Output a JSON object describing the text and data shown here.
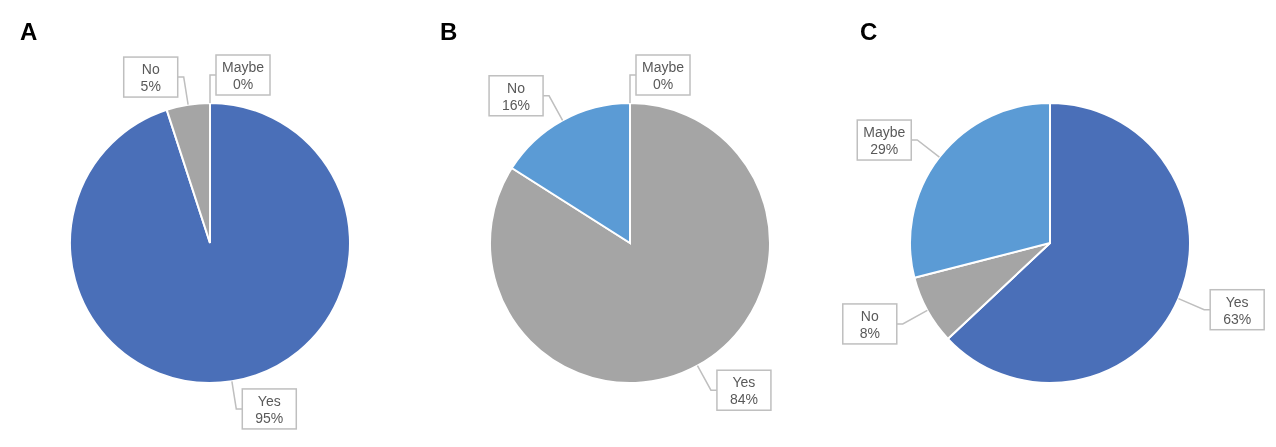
{
  "chart_data": [
    {
      "type": "pie",
      "title": "A",
      "categories": [
        "Yes",
        "No",
        "Maybe"
      ],
      "values": [
        95,
        5,
        0
      ],
      "value_labels": [
        "95%",
        "5%",
        "0%"
      ],
      "colors": [
        "#4a6fb8",
        "#a5a5a5",
        "#5b9bd5"
      ]
    },
    {
      "type": "pie",
      "title": "B",
      "categories": [
        "Yes",
        "No",
        "Maybe"
      ],
      "values": [
        84,
        16,
        0
      ],
      "value_labels": [
        "84%",
        "16%",
        "0%"
      ],
      "colors": [
        "#a5a5a5",
        "#5b9bd5",
        "#4a6fb8"
      ]
    },
    {
      "type": "pie",
      "title": "C",
      "categories": [
        "Yes",
        "No",
        "Maybe"
      ],
      "values": [
        63,
        8,
        29
      ],
      "value_labels": [
        "63%",
        "8%",
        "29%"
      ],
      "colors": [
        "#4a6fb8",
        "#a5a5a5",
        "#5b9bd5"
      ]
    }
  ]
}
